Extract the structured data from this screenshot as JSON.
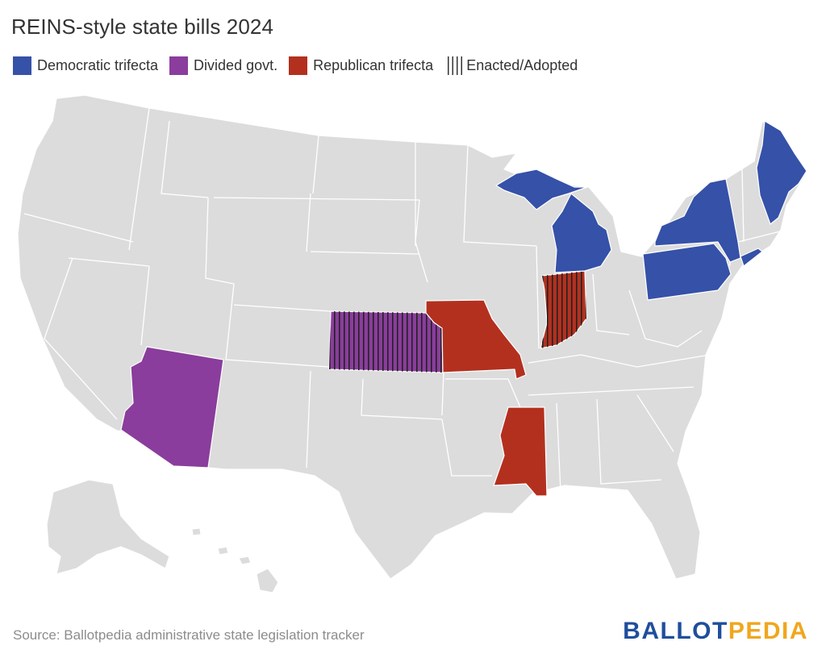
{
  "title": "REINS-style state bills 2024",
  "legend": [
    {
      "label": "Democratic trifecta",
      "color": "#3551a8"
    },
    {
      "label": "Divided govt.",
      "color": "#8a3d9c"
    },
    {
      "label": "Republican trifecta",
      "color": "#b3301f"
    },
    {
      "label": "Enacted/Adopted",
      "pattern": "vertical-hatch"
    }
  ],
  "colors": {
    "base": "#dcdcdc",
    "border": "#ffffff",
    "hatch": "#222222"
  },
  "highlighted_states": [
    {
      "state": "Maine",
      "category": "Democratic trifecta"
    },
    {
      "state": "New York",
      "category": "Democratic trifecta"
    },
    {
      "state": "Pennsylvania",
      "category": "Democratic trifecta"
    },
    {
      "state": "Michigan",
      "category": "Democratic trifecta"
    },
    {
      "state": "Arizona",
      "category": "Divided govt."
    },
    {
      "state": "Kansas",
      "category": "Divided govt.",
      "enacted": true
    },
    {
      "state": "Missouri",
      "category": "Republican trifecta"
    },
    {
      "state": "Indiana",
      "category": "Republican trifecta",
      "enacted": true
    },
    {
      "state": "Mississippi",
      "category": "Republican trifecta"
    }
  ],
  "source": "Source: Ballotpedia administrative state legislation tracker",
  "logo": {
    "part1": "BALLOT",
    "part2": "PEDIA"
  }
}
